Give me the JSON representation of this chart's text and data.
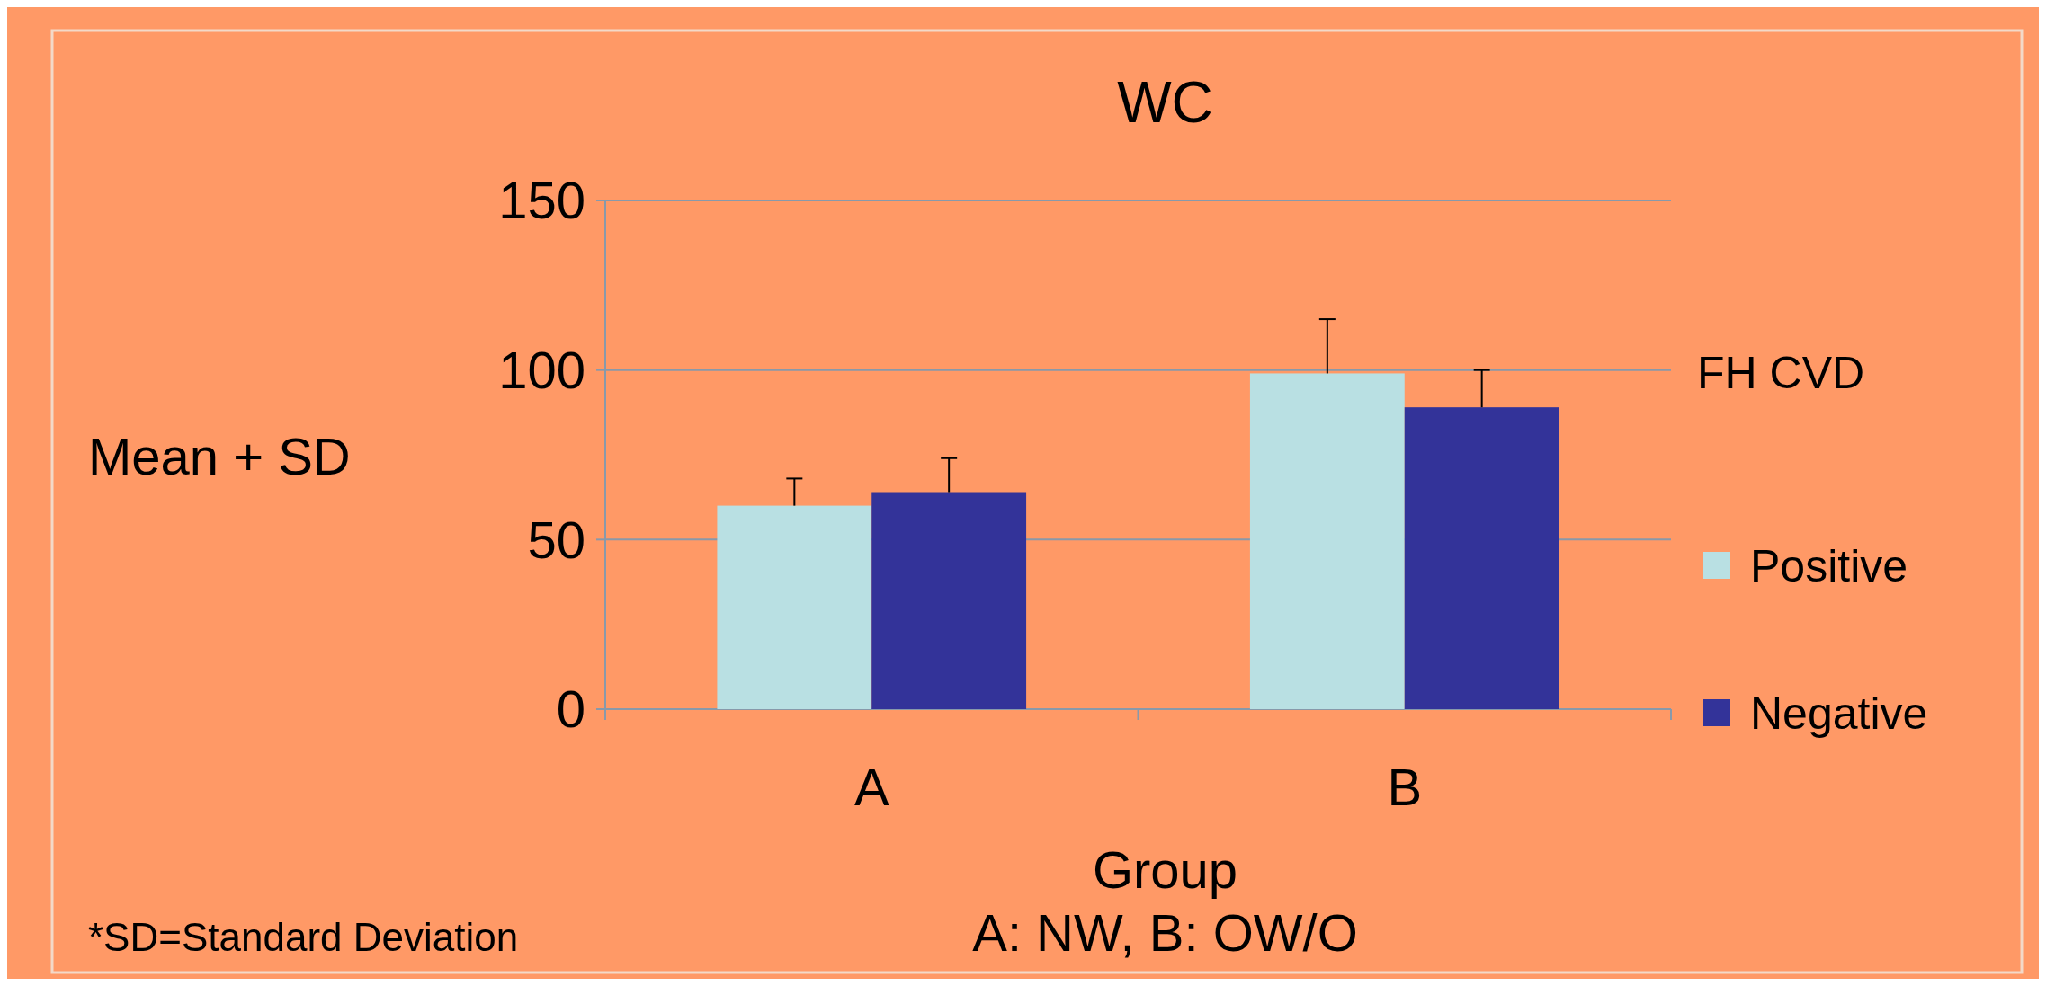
{
  "chart_data": {
    "type": "bar",
    "title": "WC",
    "xlabel": "Group\nA: NW, B: OW/O",
    "ylabel": "Mean + SD",
    "legend_title": "FH CVD",
    "legend": "right",
    "grid": "y",
    "categories": [
      "A",
      "B"
    ],
    "series": [
      {
        "name": "Positive",
        "color": "#b9e0e3",
        "values": [
          60,
          99
        ],
        "errors": [
          [
            60,
            68
          ],
          [
            99,
            115
          ]
        ]
      },
      {
        "name": "Negative",
        "color": "#333399",
        "values": [
          64,
          89
        ],
        "errors": [
          [
            64,
            74
          ],
          [
            89,
            100
          ]
        ]
      }
    ],
    "ylim": [
      0,
      150
    ],
    "yticks": [
      0,
      50,
      100,
      150
    ],
    "annotations": [
      "*SD=Standard Deviation"
    ]
  }
}
